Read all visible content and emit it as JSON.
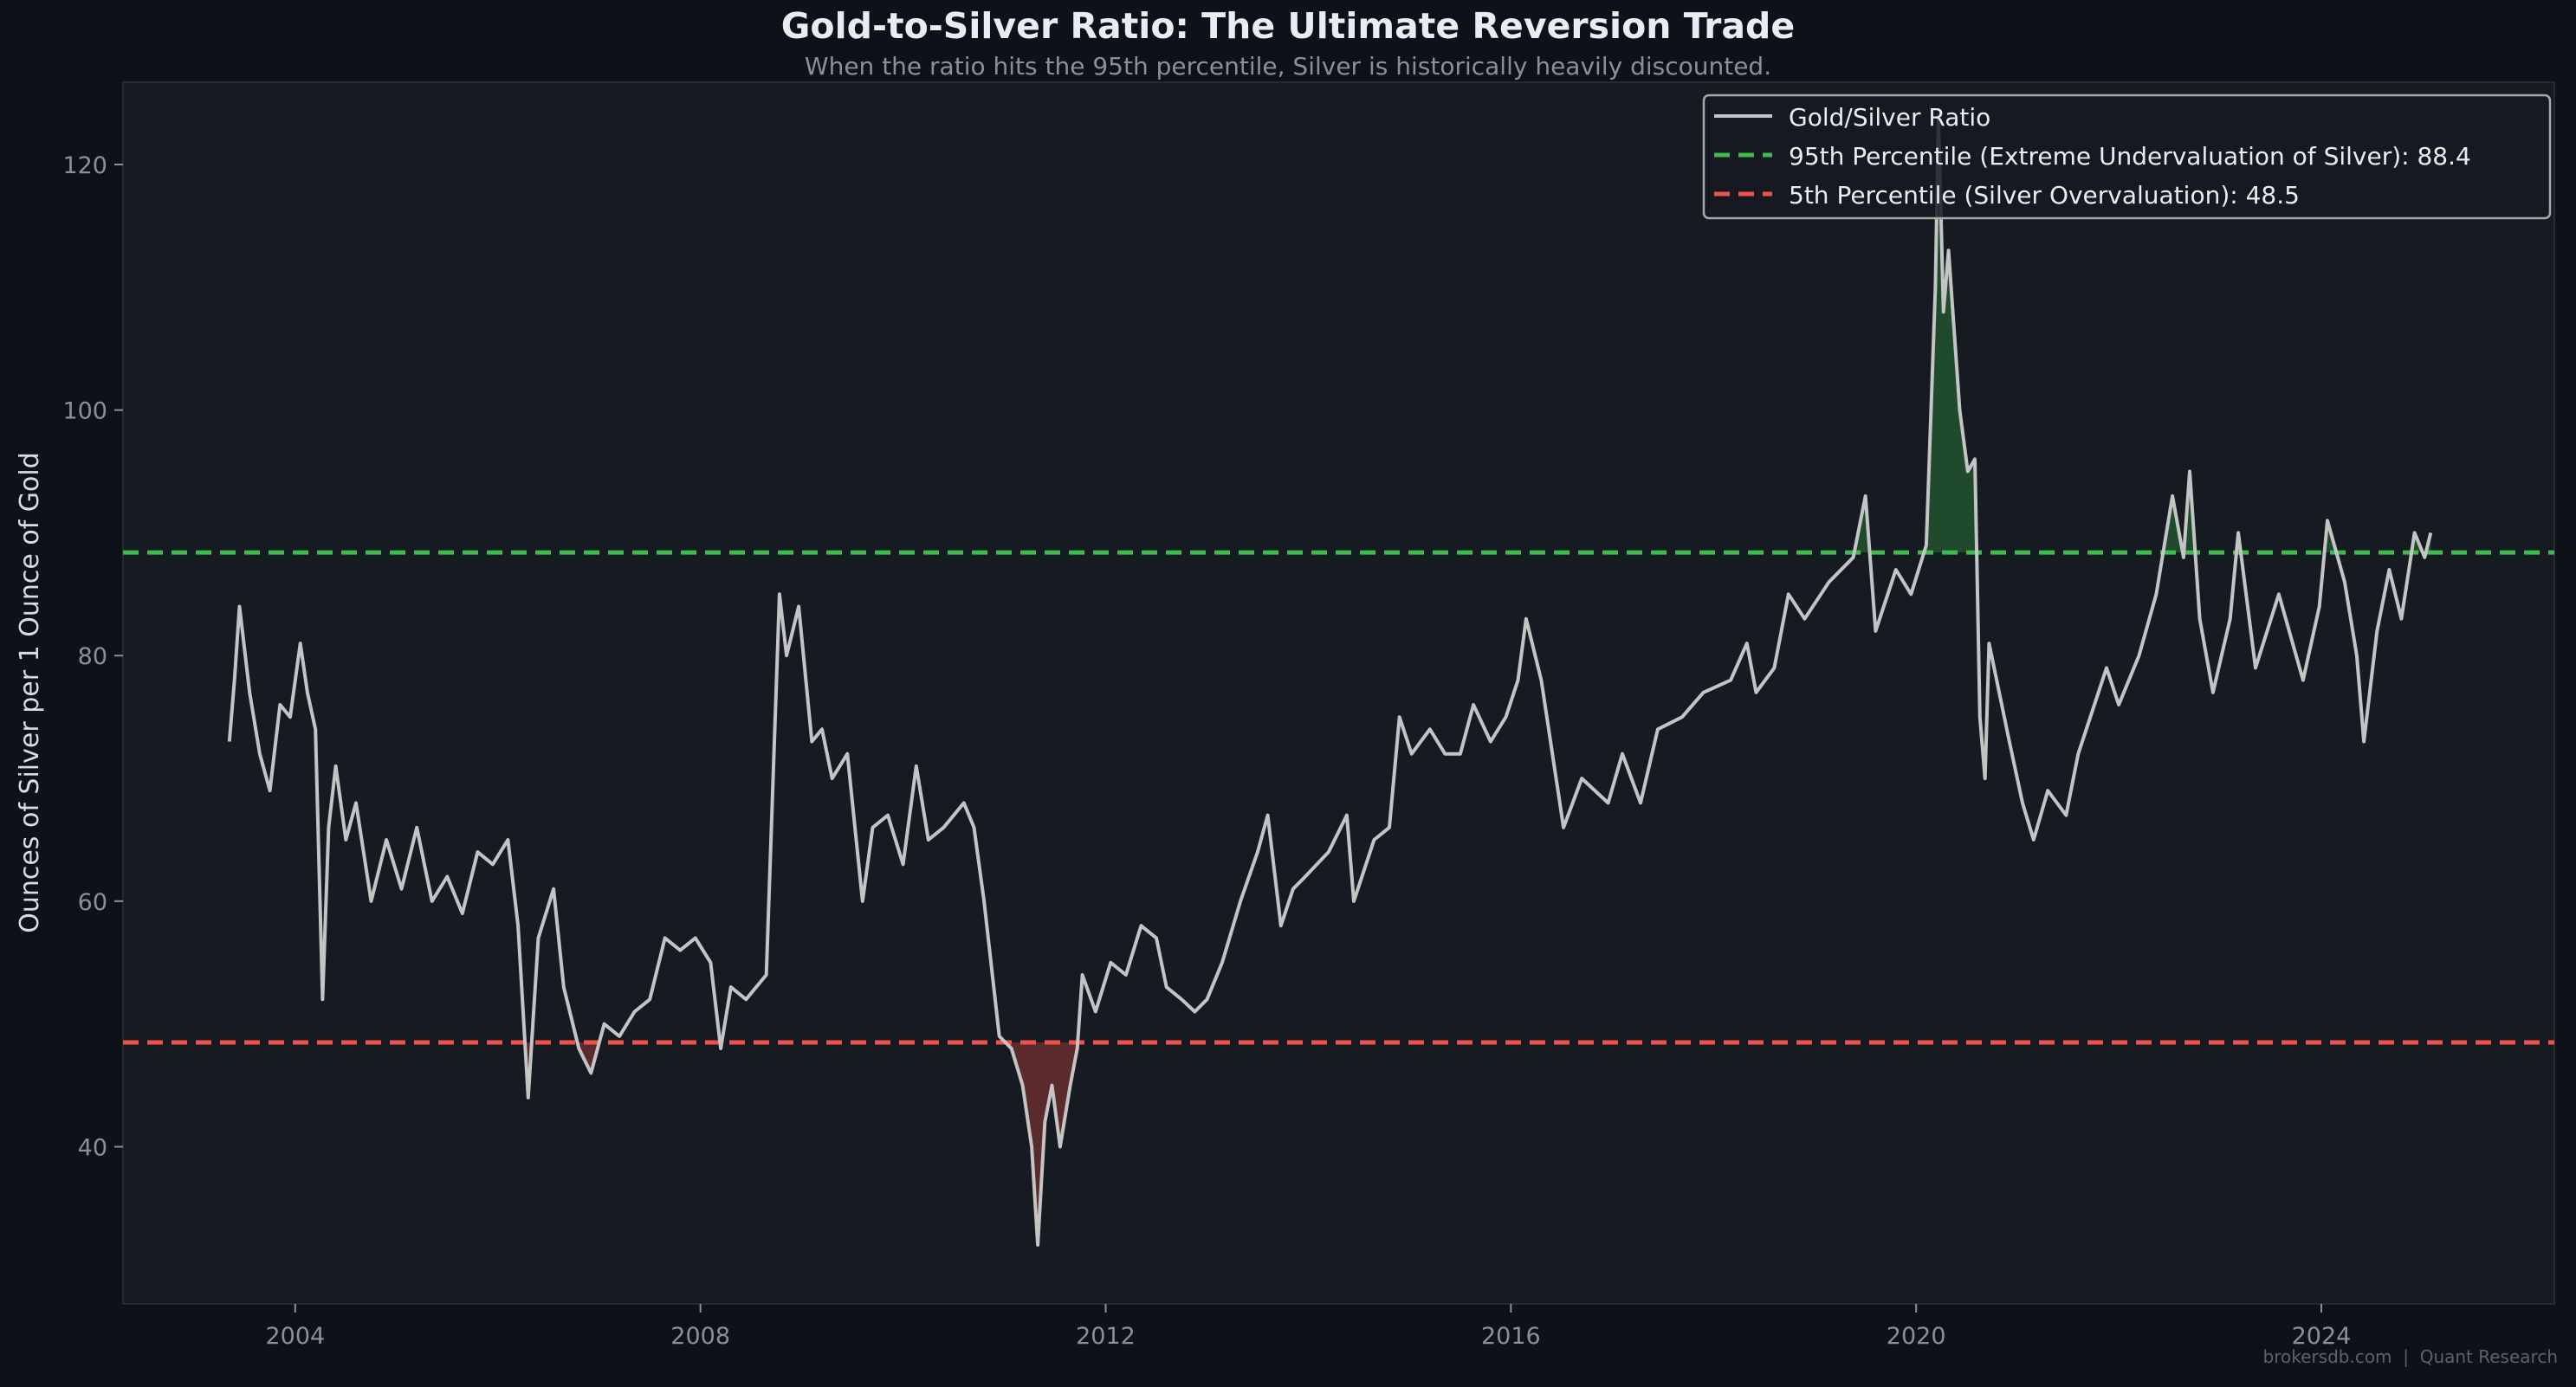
{
  "chart_data": {
    "type": "line",
    "title": "Gold-to-Silver Ratio: The Ultimate Reversion Trade",
    "subtitle": "When the ratio hits the 95th percentile, Silver is historically heavily discounted.",
    "xlabel": "",
    "ylabel": "Ounces of Silver per 1 Ounce of Gold",
    "xlim": [
      2002.3,
      2026.3
    ],
    "ylim": [
      27.2,
      126.7
    ],
    "x_ticks": [
      "2004",
      "2008",
      "2012",
      "2016",
      "2020",
      "2024"
    ],
    "y_ticks": [
      "40",
      "60",
      "80",
      "100",
      "120"
    ],
    "grid": false,
    "legend_position": "top-right",
    "legend": [
      "Gold/Silver Ratio",
      "95th Percentile (Extreme Undervaluation of Silver): 88.4",
      "5th Percentile (Silver Overvaluation): 48.5"
    ],
    "thresholds": {
      "p95": 88.4,
      "p5": 48.5
    },
    "colors": {
      "series": "#c4c4c4",
      "p95": "#3fb950",
      "p5": "#f0524a",
      "fill_high": "#1f4a2c",
      "fill_low": "#5a2a2c"
    },
    "series": [
      {
        "name": "Gold/Silver Ratio",
        "x": [
          2003.35,
          2003.4,
          2003.45,
          2003.55,
          2003.65,
          2003.75,
          2003.85,
          2003.95,
          2004.05,
          2004.12,
          2004.2,
          2004.27,
          2004.33,
          2004.4,
          2004.5,
          2004.6,
          2004.75,
          2004.9,
          2005.05,
          2005.2,
          2005.35,
          2005.5,
          2005.65,
          2005.8,
          2005.95,
          2006.1,
          2006.2,
          2006.3,
          2006.4,
          2006.55,
          2006.65,
          2006.8,
          2006.92,
          2007.05,
          2007.2,
          2007.35,
          2007.5,
          2007.65,
          2007.8,
          2007.95,
          2008.1,
          2008.2,
          2008.3,
          2008.45,
          2008.55,
          2008.65,
          2008.78,
          2008.85,
          2008.97,
          2009.1,
          2009.2,
          2009.3,
          2009.45,
          2009.6,
          2009.7,
          2009.85,
          2010.0,
          2010.13,
          2010.25,
          2010.4,
          2010.6,
          2010.7,
          2010.8,
          2010.95,
          2011.07,
          2011.18,
          2011.27,
          2011.33,
          2011.4,
          2011.47,
          2011.55,
          2011.65,
          2011.72,
          2011.77,
          2011.9,
          2012.05,
          2012.2,
          2012.35,
          2012.5,
          2012.6,
          2012.75,
          2012.88,
          2013.0,
          2013.15,
          2013.33,
          2013.5,
          2013.6,
          2013.73,
          2013.85,
          2013.97,
          2014.2,
          2014.38,
          2014.45,
          2014.65,
          2014.8,
          2014.9,
          2015.02,
          2015.2,
          2015.35,
          2015.5,
          2015.63,
          2015.8,
          2015.95,
          2016.07,
          2016.15,
          2016.3,
          2016.52,
          2016.7,
          2016.96,
          2017.1,
          2017.28,
          2017.45,
          2017.69,
          2017.9,
          2018.17,
          2018.33,
          2018.42,
          2018.6,
          2018.74,
          2018.9,
          2019.14,
          2019.38,
          2019.5,
          2019.6,
          2019.8,
          2019.95,
          2020.1,
          2020.19,
          2020.22,
          2020.27,
          2020.32,
          2020.43,
          2020.51,
          2020.58,
          2020.63,
          2020.68,
          2020.72,
          2020.92,
          2021.05,
          2021.16,
          2021.3,
          2021.48,
          2021.6,
          2021.72,
          2021.88,
          2022.0,
          2022.2,
          2022.37,
          2022.53,
          2022.64,
          2022.7,
          2022.8,
          2022.93,
          2023.1,
          2023.18,
          2023.35,
          2023.58,
          2023.82,
          2023.98,
          2024.06,
          2024.23,
          2024.35,
          2024.42,
          2024.55,
          2024.67,
          2024.79,
          2024.92,
          2025.02,
          2025.08
        ],
        "y": [
          73,
          78,
          84,
          77,
          72,
          69,
          76,
          75,
          81,
          77,
          74,
          52,
          66,
          71,
          65,
          68,
          60,
          65,
          61,
          66,
          60,
          62,
          59,
          64,
          63,
          65,
          58,
          44,
          57,
          61,
          53,
          48,
          46,
          50,
          49,
          51,
          52,
          57,
          56,
          57,
          55,
          48,
          53,
          52,
          53,
          54,
          85,
          80,
          84,
          73,
          74,
          70,
          72,
          60,
          66,
          67,
          63,
          71,
          65,
          66,
          68,
          66,
          60,
          49,
          48,
          45,
          40,
          32,
          42,
          45,
          40,
          45,
          48,
          54,
          51,
          55,
          54,
          58,
          57,
          53,
          52,
          51,
          52,
          55,
          60,
          64,
          67,
          58,
          61,
          62,
          64,
          67,
          60,
          65,
          66,
          75,
          72,
          74,
          72,
          72,
          76,
          73,
          75,
          78,
          83,
          78,
          66,
          70,
          68,
          72,
          68,
          74,
          75,
          77,
          78,
          81,
          77,
          79,
          85,
          83,
          86,
          88,
          93,
          82,
          87,
          85,
          89,
          110,
          124,
          108,
          113,
          100,
          95,
          96,
          75,
          70,
          81,
          73,
          68,
          65,
          69,
          67,
          72,
          75,
          79,
          76,
          80,
          85,
          93,
          88,
          95,
          83,
          77,
          83,
          90,
          79,
          85,
          78,
          84,
          91,
          86,
          80,
          73,
          82,
          87,
          83,
          90,
          88,
          90
        ]
      }
    ]
  },
  "footer": {
    "watermark": "brokersdb.com  |  Quant Research"
  }
}
